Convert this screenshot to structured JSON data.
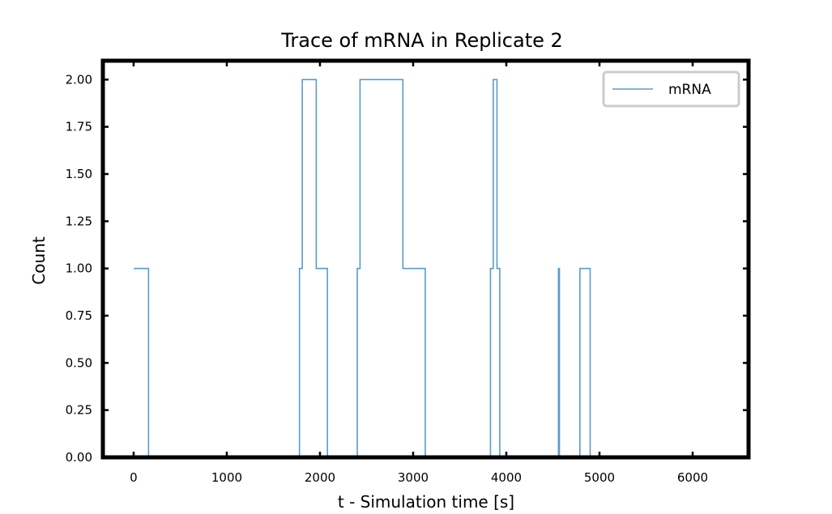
{
  "chart_data": {
    "type": "line",
    "step": true,
    "title": "Trace of mRNA in Replicate 2",
    "xlabel": "t - Simulation time [s]",
    "ylabel": "Count",
    "xlim": [
      -330,
      6600
    ],
    "ylim": [
      0,
      2.1
    ],
    "xticks": [
      0,
      1000,
      2000,
      3000,
      4000,
      5000,
      6000
    ],
    "yticks": [
      0.0,
      0.25,
      0.5,
      0.75,
      1.0,
      1.25,
      1.5,
      1.75,
      2.0
    ],
    "xtick_labels": [
      "0",
      "1000",
      "2000",
      "3000",
      "4000",
      "5000",
      "6000"
    ],
    "ytick_labels": [
      "0.00",
      "0.25",
      "0.50",
      "0.75",
      "1.00",
      "1.25",
      "1.50",
      "1.75",
      "2.00"
    ],
    "grid": false,
    "legend_position": "top-right",
    "series": [
      {
        "name": "mRNA",
        "color": "#5b9bc8",
        "x": [
          0,
          160,
          1780,
          1810,
          1960,
          2080,
          2400,
          2430,
          2890,
          3130,
          3830,
          3860,
          3900,
          3930,
          4560,
          4570,
          4790,
          4900
        ],
        "y": [
          1,
          0,
          1,
          2,
          1,
          0,
          1,
          2,
          1,
          0,
          1,
          2,
          1,
          0,
          1,
          0,
          1,
          0
        ]
      }
    ]
  }
}
